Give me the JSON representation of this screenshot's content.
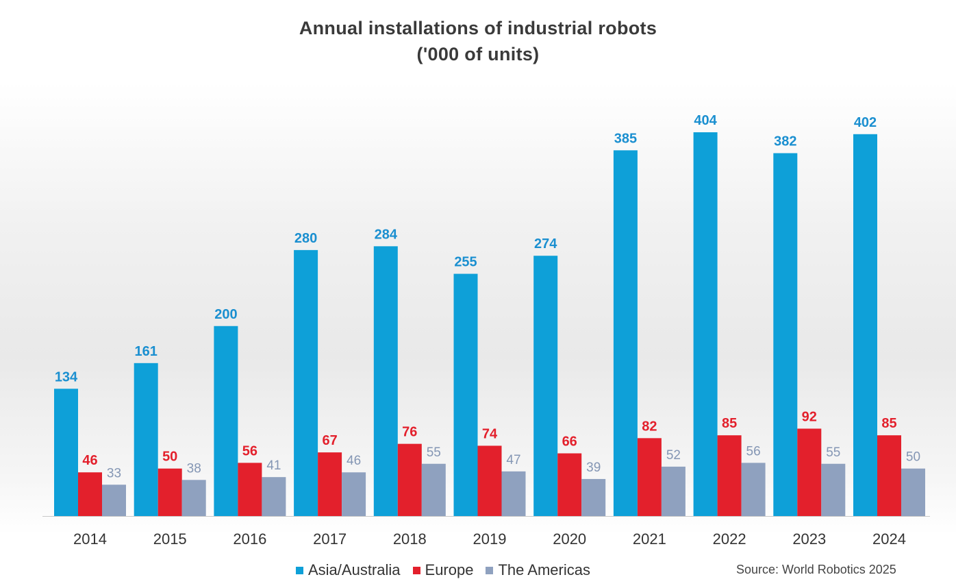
{
  "chart_data": {
    "type": "bar",
    "title": "Annual installations of industrial robots",
    "subtitle": "('000 of units)",
    "categories": [
      "2014",
      "2015",
      "2016",
      "2017",
      "2018",
      "2019",
      "2020",
      "2021",
      "2022",
      "2023",
      "2024"
    ],
    "series": [
      {
        "name": "Asia/Australia",
        "color": "#0ea0d8",
        "label_color": "#1a8fd0",
        "values": [
          134,
          161,
          200,
          280,
          284,
          255,
          274,
          385,
          404,
          382,
          402
        ]
      },
      {
        "name": "Europe",
        "color": "#e3202c",
        "label_color": "#e3202c",
        "values": [
          46,
          50,
          56,
          67,
          76,
          74,
          66,
          82,
          85,
          92,
          85
        ]
      },
      {
        "name": "The Americas",
        "color": "#8fa1bf",
        "label_color": "#8496b4",
        "values": [
          33,
          38,
          41,
          46,
          55,
          47,
          39,
          52,
          56,
          55,
          50
        ]
      }
    ],
    "ylim": [
      0,
      404
    ],
    "grid": false,
    "legend_position": "bottom",
    "source": "Source: World Robotics 2025"
  }
}
